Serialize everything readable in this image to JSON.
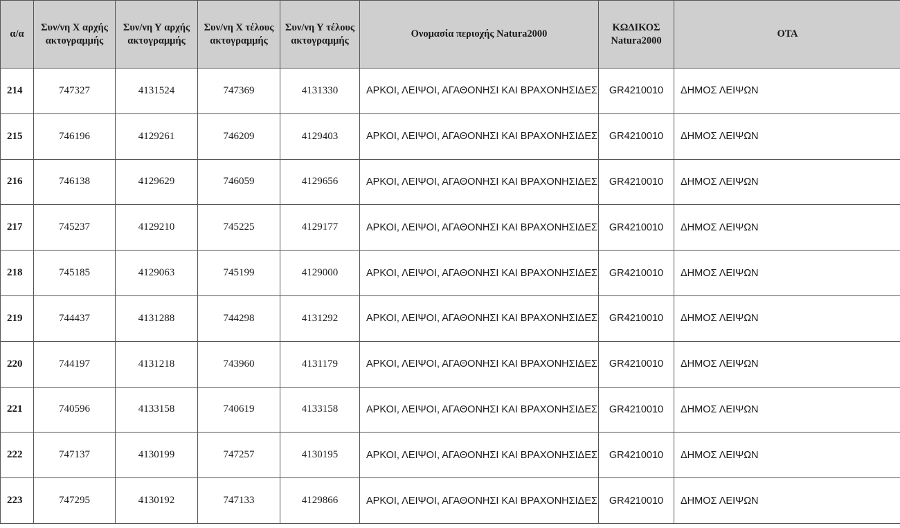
{
  "table": {
    "headers": [
      "α/α",
      "Συν/νη Χ αρχής ακτογραμμής",
      "Συν/νη Υ αρχής ακτογραμμής",
      "Συν/νη Χ τέλους ακτογραμμής",
      "Συν/νη Υ τέλους ακτογραμμής",
      "Ονομασία περιοχής Natura2000",
      "ΚΩΔΙΚΟΣ Natura2000",
      "ΟΤΑ"
    ],
    "rows": [
      [
        "214",
        "747327",
        "4131524",
        "747369",
        "4131330",
        "ΑΡΚΟΙ, ΛΕΙΨΟΙ, ΑΓΑΘΟΝΗΣΙ ΚΑΙ ΒΡΑΧΟΝΗΣΙΔΕΣ",
        "GR4210010",
        "ΔΗΜΟΣ ΛΕΙΨΩΝ"
      ],
      [
        "215",
        "746196",
        "4129261",
        "746209",
        "4129403",
        "ΑΡΚΟΙ, ΛΕΙΨΟΙ, ΑΓΑΘΟΝΗΣΙ ΚΑΙ ΒΡΑΧΟΝΗΣΙΔΕΣ",
        "GR4210010",
        "ΔΗΜΟΣ ΛΕΙΨΩΝ"
      ],
      [
        "216",
        "746138",
        "4129629",
        "746059",
        "4129656",
        "ΑΡΚΟΙ, ΛΕΙΨΟΙ, ΑΓΑΘΟΝΗΣΙ ΚΑΙ ΒΡΑΧΟΝΗΣΙΔΕΣ",
        "GR4210010",
        "ΔΗΜΟΣ ΛΕΙΨΩΝ"
      ],
      [
        "217",
        "745237",
        "4129210",
        "745225",
        "4129177",
        "ΑΡΚΟΙ, ΛΕΙΨΟΙ, ΑΓΑΘΟΝΗΣΙ ΚΑΙ ΒΡΑΧΟΝΗΣΙΔΕΣ",
        "GR4210010",
        "ΔΗΜΟΣ ΛΕΙΨΩΝ"
      ],
      [
        "218",
        "745185",
        "4129063",
        "745199",
        "4129000",
        "ΑΡΚΟΙ, ΛΕΙΨΟΙ, ΑΓΑΘΟΝΗΣΙ ΚΑΙ ΒΡΑΧΟΝΗΣΙΔΕΣ",
        "GR4210010",
        "ΔΗΜΟΣ ΛΕΙΨΩΝ"
      ],
      [
        "219",
        "744437",
        "4131288",
        "744298",
        "4131292",
        "ΑΡΚΟΙ, ΛΕΙΨΟΙ, ΑΓΑΘΟΝΗΣΙ ΚΑΙ ΒΡΑΧΟΝΗΣΙΔΕΣ",
        "GR4210010",
        "ΔΗΜΟΣ ΛΕΙΨΩΝ"
      ],
      [
        "220",
        "744197",
        "4131218",
        "743960",
        "4131179",
        "ΑΡΚΟΙ, ΛΕΙΨΟΙ, ΑΓΑΘΟΝΗΣΙ ΚΑΙ ΒΡΑΧΟΝΗΣΙΔΕΣ",
        "GR4210010",
        "ΔΗΜΟΣ ΛΕΙΨΩΝ"
      ],
      [
        "221",
        "740596",
        "4133158",
        "740619",
        "4133158",
        "ΑΡΚΟΙ, ΛΕΙΨΟΙ, ΑΓΑΘΟΝΗΣΙ ΚΑΙ ΒΡΑΧΟΝΗΣΙΔΕΣ",
        "GR4210010",
        "ΔΗΜΟΣ ΛΕΙΨΩΝ"
      ],
      [
        "222",
        "747137",
        "4130199",
        "747257",
        "4130195",
        "ΑΡΚΟΙ, ΛΕΙΨΟΙ, ΑΓΑΘΟΝΗΣΙ ΚΑΙ ΒΡΑΧΟΝΗΣΙΔΕΣ",
        "GR4210010",
        "ΔΗΜΟΣ ΛΕΙΨΩΝ"
      ],
      [
        "223",
        "747295",
        "4130192",
        "747133",
        "4129866",
        "ΑΡΚΟΙ, ΛΕΙΨΟΙ, ΑΓΑΘΟΝΗΣΙ ΚΑΙ ΒΡΑΧΟΝΗΣΙΔΕΣ",
        "GR4210010",
        "ΔΗΜΟΣ ΛΕΙΨΩΝ"
      ]
    ]
  }
}
